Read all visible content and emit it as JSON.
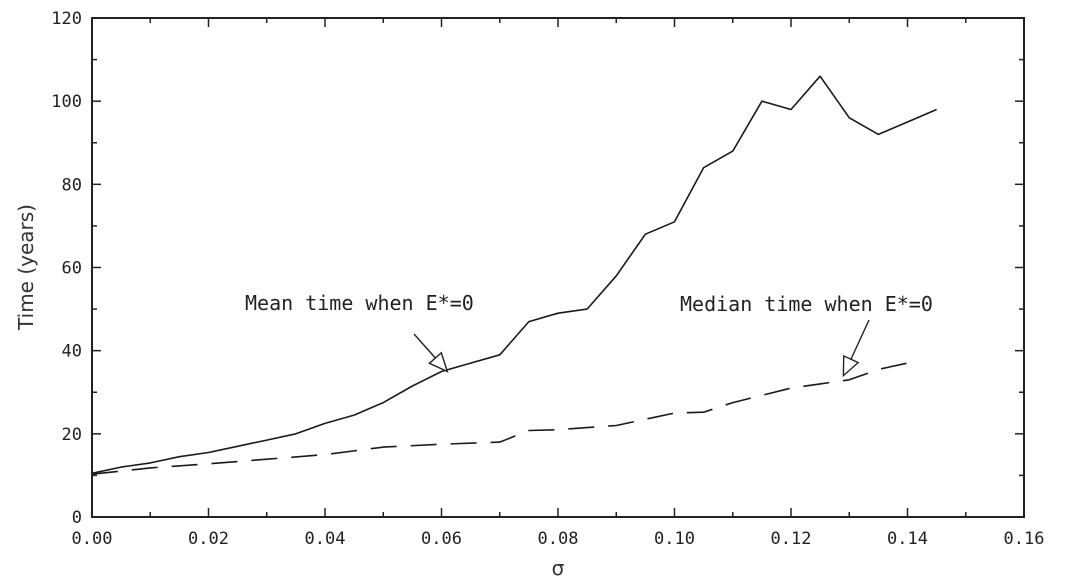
{
  "chart_data": {
    "type": "line",
    "title": "",
    "xlabel": "σ",
    "ylabel": "Time (years)",
    "xlim": [
      0.0,
      0.16
    ],
    "ylim": [
      0,
      120
    ],
    "xticks": [
      0.0,
      0.02,
      0.04,
      0.06,
      0.08,
      0.1,
      0.12,
      0.14,
      0.16
    ],
    "xtick_labels": [
      "0.00",
      "0.02",
      "0.04",
      "0.06",
      "0.08",
      "0.10",
      "0.12",
      "0.14",
      "0.16"
    ],
    "yticks": [
      0,
      20,
      40,
      60,
      80,
      100,
      120
    ],
    "ytick_labels": [
      "0",
      "20",
      "40",
      "60",
      "80",
      "100",
      "120"
    ],
    "grid": false,
    "series": [
      {
        "style": "solid",
        "x": [
          0.0,
          0.005,
          0.01,
          0.015,
          0.02,
          0.025,
          0.03,
          0.035,
          0.04,
          0.045,
          0.05,
          0.055,
          0.06,
          0.065,
          0.07,
          0.075,
          0.08,
          0.085,
          0.09,
          0.095,
          0.1,
          0.105,
          0.11,
          0.115,
          0.12,
          0.125,
          0.13,
          0.135,
          0.14,
          0.145
        ],
        "y": [
          10.5,
          12,
          13,
          14.5,
          15.5,
          17,
          18.5,
          20,
          22.5,
          24.5,
          27.5,
          31.5,
          35,
          37,
          39,
          47,
          49,
          50,
          58,
          68,
          71,
          84,
          88,
          100,
          98,
          106,
          96,
          92,
          95,
          98
        ]
      },
      {
        "style": "dashed",
        "x": [
          0.0,
          0.01,
          0.02,
          0.03,
          0.04,
          0.05,
          0.06,
          0.07,
          0.075,
          0.08,
          0.09,
          0.1,
          0.105,
          0.11,
          0.12,
          0.125,
          0.13,
          0.135,
          0.14
        ],
        "y": [
          10.3,
          11.8,
          12.8,
          13.9,
          15,
          16.8,
          17.5,
          18,
          20.8,
          21,
          22,
          25,
          25.2,
          27.5,
          31,
          32,
          33,
          35.5,
          37
        ]
      }
    ],
    "annotations": [
      {
        "text": "Mean time when E*=0",
        "arrow_to": [
          0.061,
          35
        ]
      },
      {
        "text": "Median time when E*=0",
        "arrow_to": [
          0.129,
          34
        ]
      }
    ]
  }
}
